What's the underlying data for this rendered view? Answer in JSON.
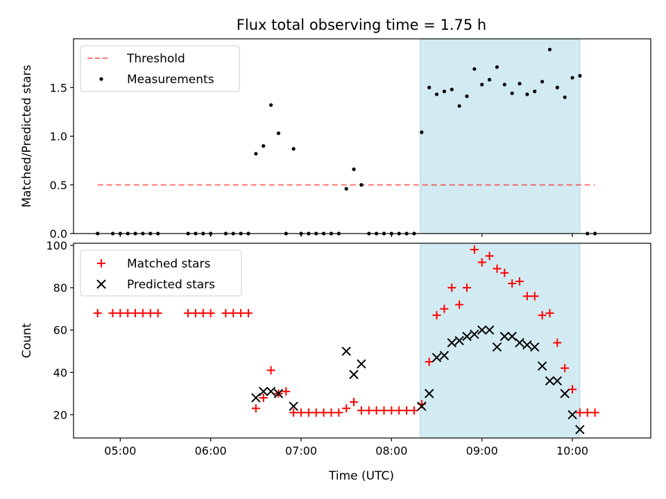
{
  "chart_data": [
    {
      "type": "scatter",
      "title": "Flux total observing time = 1.75 h",
      "xlabel": "",
      "ylabel": "Matched/Predicted stars",
      "xlim": [
        "04:29",
        "10:52"
      ],
      "ylim": [
        0,
        2.0
      ],
      "yticks": [
        "0.0",
        "0.5",
        "1.0",
        "1.5"
      ],
      "ytick_values": [
        0,
        0.5,
        1.0,
        1.5
      ],
      "xtick_values": [
        "05:00",
        "06:00",
        "07:00",
        "08:00",
        "09:00",
        "10:00"
      ],
      "shaded_region": [
        "08:19",
        "10:05"
      ],
      "shade_color": "#add8e6",
      "legend_position": "upper-left",
      "legend": [
        "Threshold",
        "Measurements"
      ],
      "threshold": {
        "name": "Threshold",
        "y": 0.5,
        "x_range": [
          "04:45",
          "10:15"
        ],
        "color": "#ff0000",
        "style": "dashed"
      },
      "series": [
        {
          "name": "Measurements",
          "color": "#000000",
          "marker": "dot",
          "x": [
            "04:45",
            "04:55",
            "05:00",
            "05:05",
            "05:10",
            "05:15",
            "05:20",
            "05:25",
            "05:45",
            "05:50",
            "05:55",
            "06:00",
            "06:10",
            "06:15",
            "06:20",
            "06:25",
            "06:30",
            "06:35",
            "06:40",
            "06:45",
            "06:50",
            "06:55",
            "07:00",
            "07:05",
            "07:10",
            "07:15",
            "07:20",
            "07:25",
            "07:30",
            "07:35",
            "07:40",
            "07:45",
            "07:50",
            "07:55",
            "08:00",
            "08:05",
            "08:10",
            "08:15",
            "08:20",
            "08:25",
            "08:30",
            "08:35",
            "08:40",
            "08:45",
            "08:50",
            "08:55",
            "09:00",
            "09:05",
            "09:10",
            "09:15",
            "09:20",
            "09:25",
            "09:30",
            "09:35",
            "09:40",
            "09:45",
            "09:50",
            "09:55",
            "10:00",
            "10:05",
            "10:10",
            "10:15"
          ],
          "y": [
            0,
            0,
            0,
            0,
            0,
            0,
            0,
            0,
            0,
            0,
            0,
            0,
            0,
            0,
            0,
            0,
            0.82,
            0.9,
            1.32,
            1.03,
            0,
            0.87,
            0,
            0,
            0,
            0,
            0,
            0,
            0.46,
            0.66,
            0.5,
            0,
            0,
            0,
            0,
            0,
            0,
            0,
            1.04,
            1.5,
            1.43,
            1.46,
            1.48,
            1.31,
            1.41,
            1.69,
            1.53,
            1.58,
            1.71,
            1.53,
            1.44,
            1.54,
            1.43,
            1.46,
            1.56,
            1.89,
            1.5,
            1.4,
            1.6,
            1.62,
            0,
            0
          ]
        }
      ]
    },
    {
      "type": "scatter",
      "title": "",
      "xlabel": "Time (UTC)",
      "ylabel": "Count",
      "xlim": [
        "04:29",
        "10:52"
      ],
      "ylim": [
        9,
        101
      ],
      "yticks": [
        "20",
        "40",
        "60",
        "80",
        "100"
      ],
      "ytick_values": [
        20,
        40,
        60,
        80,
        100
      ],
      "xticks": [
        "05:00",
        "06:00",
        "07:00",
        "08:00",
        "09:00",
        "10:00"
      ],
      "shaded_region": [
        "08:19",
        "10:05"
      ],
      "shade_color": "#add8e6",
      "legend_position": "upper-left",
      "legend": [
        "Matched stars",
        "Predicted stars"
      ],
      "series": [
        {
          "name": "Matched stars",
          "color": "#ff0000",
          "marker": "plus",
          "x": [
            "04:45",
            "04:55",
            "05:00",
            "05:05",
            "05:10",
            "05:15",
            "05:20",
            "05:25",
            "05:45",
            "05:50",
            "05:55",
            "06:00",
            "06:10",
            "06:15",
            "06:20",
            "06:25",
            "06:30",
            "06:35",
            "06:40",
            "06:45",
            "06:50",
            "06:55",
            "07:00",
            "07:05",
            "07:10",
            "07:15",
            "07:20",
            "07:25",
            "07:30",
            "07:35",
            "07:40",
            "07:45",
            "07:50",
            "07:55",
            "08:00",
            "08:05",
            "08:10",
            "08:15",
            "08:20",
            "08:25",
            "08:30",
            "08:35",
            "08:40",
            "08:45",
            "08:50",
            "08:55",
            "09:00",
            "09:05",
            "09:10",
            "09:15",
            "09:20",
            "09:25",
            "09:30",
            "09:35",
            "09:40",
            "09:45",
            "09:50",
            "09:55",
            "10:00",
            "10:05",
            "10:10",
            "10:15"
          ],
          "y": [
            68,
            68,
            68,
            68,
            68,
            68,
            68,
            68,
            68,
            68,
            68,
            68,
            68,
            68,
            68,
            68,
            23,
            28,
            41,
            30,
            31,
            21,
            21,
            21,
            21,
            21,
            21,
            21,
            23,
            26,
            22,
            22,
            22,
            22,
            22,
            22,
            22,
            22,
            25,
            45,
            67,
            70,
            80,
            72,
            80,
            98,
            92,
            95,
            89,
            87,
            82,
            83,
            76,
            76,
            67,
            68,
            54,
            42,
            32,
            21,
            21,
            21
          ]
        },
        {
          "name": "Predicted stars",
          "color": "#000000",
          "marker": "x",
          "x": [
            "06:30",
            "06:35",
            "06:40",
            "06:45",
            "06:55",
            "07:30",
            "07:35",
            "07:40",
            "08:20",
            "08:25",
            "08:30",
            "08:35",
            "08:40",
            "08:45",
            "08:50",
            "08:55",
            "09:00",
            "09:05",
            "09:10",
            "09:15",
            "09:20",
            "09:25",
            "09:30",
            "09:35",
            "09:40",
            "09:45",
            "09:50",
            "09:55",
            "10:00",
            "10:05"
          ],
          "y": [
            28,
            31,
            31,
            30,
            24,
            50,
            39,
            44,
            24,
            30,
            47,
            48,
            54,
            55,
            57,
            58,
            60,
            60,
            52,
            57,
            57,
            54,
            53,
            52,
            43,
            36,
            36,
            30,
            20,
            13
          ]
        }
      ]
    }
  ]
}
